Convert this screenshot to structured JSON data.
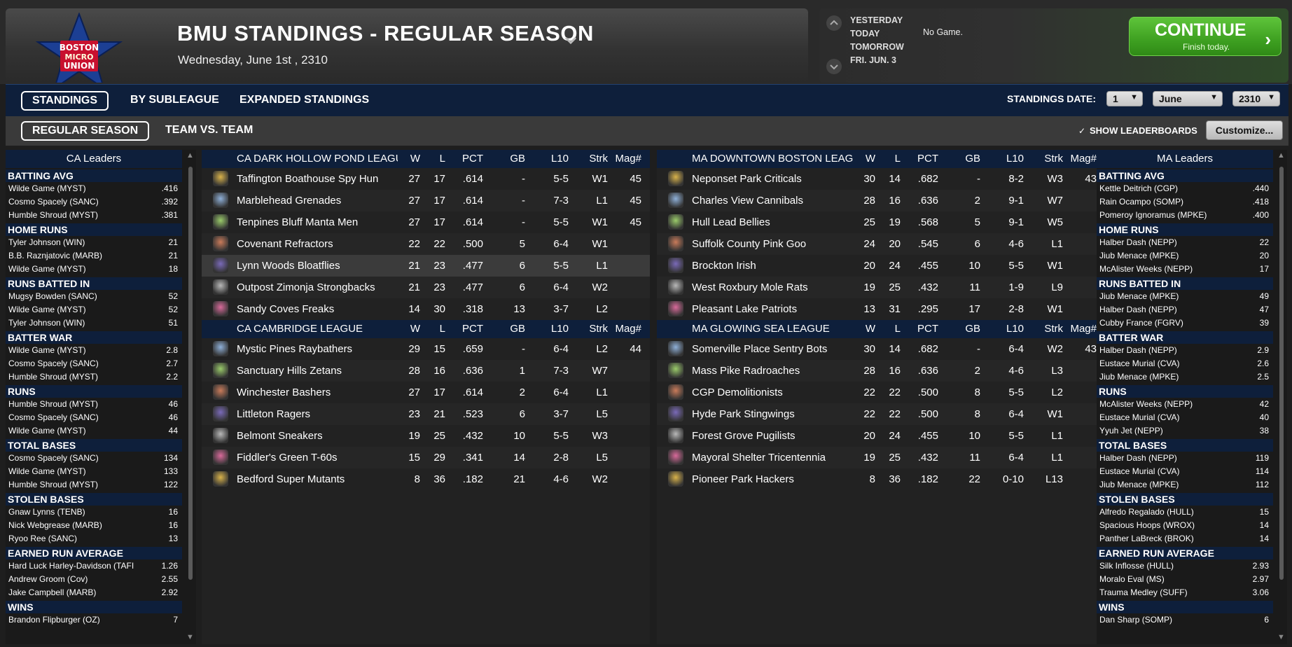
{
  "header": {
    "title": "BMU STANDINGS - REGULAR SEASON",
    "date": "Wednesday, June 1st , 2310",
    "logo_text": [
      "BOSTON",
      "MICRO",
      "UNION"
    ],
    "days": [
      "YESTERDAY",
      "TODAY",
      "TOMORROW",
      "FRI. JUN. 3"
    ],
    "no_game": "No Game.",
    "continue_label": "CONTINUE",
    "continue_sub": "Finish today.",
    "continue_arrow": "›"
  },
  "tabs": {
    "primary": [
      "STANDINGS",
      "BY SUBLEAGUE",
      "EXPANDED STANDINGS"
    ],
    "secondary": [
      "REGULAR SEASON",
      "TEAM VS. TEAM"
    ],
    "standings_date_label": "STANDINGS DATE:",
    "date_day": "1",
    "date_month": "June",
    "date_year": "2310",
    "show_leaderboards": "SHOW LEADERBOARDS",
    "check_mark": "✓",
    "customize": "Customize..."
  },
  "colors": {
    "nav_blue": "#0e1f3b",
    "continue_green": "#3ea021",
    "logo_red": "#c8102e",
    "logo_blue": "#1c3f94"
  },
  "columns": [
    "W",
    "L",
    "PCT",
    "GB",
    "L10",
    "Strk",
    "Mag#"
  ],
  "ca_leaders": {
    "title": "CA Leaders",
    "categories": [
      {
        "name": "BATTING AVG",
        "rows": [
          [
            "Wilde Game (MYST)",
            ".416"
          ],
          [
            "Cosmo Spacely (SANC)",
            ".392"
          ],
          [
            "Humble Shroud (MYST)",
            ".381"
          ]
        ]
      },
      {
        "name": "HOME RUNS",
        "rows": [
          [
            "Tyler Johnson (WIN)",
            "21"
          ],
          [
            "B.B. Raznjatovic (MARB)",
            "21"
          ],
          [
            "Wilde Game (MYST)",
            "18"
          ]
        ]
      },
      {
        "name": "RUNS BATTED IN",
        "rows": [
          [
            "Mugsy Bowden (SANC)",
            "52"
          ],
          [
            "Wilde Game (MYST)",
            "52"
          ],
          [
            "Tyler Johnson (WIN)",
            "51"
          ]
        ]
      },
      {
        "name": "BATTER WAR",
        "rows": [
          [
            "Wilde Game (MYST)",
            "2.8"
          ],
          [
            "Cosmo Spacely (SANC)",
            "2.7"
          ],
          [
            "Humble Shroud (MYST)",
            "2.2"
          ]
        ]
      },
      {
        "name": "RUNS",
        "rows": [
          [
            "Humble Shroud (MYST)",
            "46"
          ],
          [
            "Cosmo Spacely (SANC)",
            "46"
          ],
          [
            "Wilde Game (MYST)",
            "44"
          ]
        ]
      },
      {
        "name": "TOTAL BASES",
        "rows": [
          [
            "Cosmo Spacely (SANC)",
            "134"
          ],
          [
            "Wilde Game (MYST)",
            "133"
          ],
          [
            "Humble Shroud (MYST)",
            "122"
          ]
        ]
      },
      {
        "name": "STOLEN BASES",
        "rows": [
          [
            "Gnaw Lynns (TENB)",
            "16"
          ],
          [
            "Nick Webgrease (MARB)",
            "16"
          ],
          [
            "Ryoo Ree (SANC)",
            "13"
          ]
        ]
      },
      {
        "name": "EARNED RUN AVERAGE",
        "rows": [
          [
            "Hard Luck Harley-Davidson (TAFI",
            "1.26"
          ],
          [
            "Andrew Groom (Cov)",
            "2.55"
          ],
          [
            "Jake Campbell (MARB)",
            "2.92"
          ]
        ]
      },
      {
        "name": "WINS",
        "rows": [
          [
            "Brandon Flipburger (OZ)",
            "7"
          ]
        ]
      }
    ]
  },
  "ma_leaders": {
    "title": "MA Leaders",
    "categories": [
      {
        "name": "BATTING AVG",
        "rows": [
          [
            "Kettle Deitrich (CGP)",
            ".440"
          ],
          [
            "Rain Ocampo (SOMP)",
            ".418"
          ],
          [
            "Pomeroy Ignoramus (MPKE)",
            ".400"
          ]
        ]
      },
      {
        "name": "HOME RUNS",
        "rows": [
          [
            "Halber Dash (NEPP)",
            "22"
          ],
          [
            "Jiub Menace (MPKE)",
            "20"
          ],
          [
            "McAlister Weeks (NEPP)",
            "17"
          ]
        ]
      },
      {
        "name": "RUNS BATTED IN",
        "rows": [
          [
            "Jiub Menace (MPKE)",
            "49"
          ],
          [
            "Halber Dash (NEPP)",
            "47"
          ],
          [
            "Cubby France (FGRV)",
            "39"
          ]
        ]
      },
      {
        "name": "BATTER WAR",
        "rows": [
          [
            "Halber Dash (NEPP)",
            "2.9"
          ],
          [
            "Eustace Murial (CVA)",
            "2.6"
          ],
          [
            "Jiub Menace (MPKE)",
            "2.5"
          ]
        ]
      },
      {
        "name": "RUNS",
        "rows": [
          [
            "McAlister Weeks (NEPP)",
            "42"
          ],
          [
            "Eustace Murial (CVA)",
            "40"
          ],
          [
            "Yyuh Jet (NEPP)",
            "38"
          ]
        ]
      },
      {
        "name": "TOTAL BASES",
        "rows": [
          [
            "Halber Dash (NEPP)",
            "119"
          ],
          [
            "Eustace Murial (CVA)",
            "114"
          ],
          [
            "Jiub Menace (MPKE)",
            "112"
          ]
        ]
      },
      {
        "name": "STOLEN BASES",
        "rows": [
          [
            "Alfredo Regalado (HULL)",
            "15"
          ],
          [
            "Spacious Hoops (WROX)",
            "14"
          ],
          [
            "Panther LaBreck (BROK)",
            "14"
          ]
        ]
      },
      {
        "name": "EARNED RUN AVERAGE",
        "rows": [
          [
            "Silk Inflosse (HULL)",
            "2.93"
          ],
          [
            "Moralo Eval (MS)",
            "2.97"
          ],
          [
            "Trauma Medley (SUFF)",
            "3.06"
          ]
        ]
      },
      {
        "name": "WINS",
        "rows": [
          [
            "Dan Sharp (SOMP)",
            "6"
          ]
        ]
      }
    ]
  },
  "ca_standings": [
    {
      "league": "CA DARK HOLLOW POND LEAGUE",
      "teams": [
        [
          "Taffington Boathouse Spy Hun",
          "27",
          "17",
          ".614",
          "-",
          "5-5",
          "W1",
          "45"
        ],
        [
          "Marblehead Grenades",
          "27",
          "17",
          ".614",
          "-",
          "7-3",
          "L1",
          "45"
        ],
        [
          "Tenpines Bluff Manta Men",
          "27",
          "17",
          ".614",
          "-",
          "5-5",
          "W1",
          "45"
        ],
        [
          "Covenant Refractors",
          "22",
          "22",
          ".500",
          "5",
          "6-4",
          "W1",
          ""
        ],
        [
          "Lynn Woods Bloatflies",
          "21",
          "23",
          ".477",
          "6",
          "5-5",
          "L1",
          ""
        ],
        [
          "Outpost Zimonja Strongbacks",
          "21",
          "23",
          ".477",
          "6",
          "6-4",
          "W2",
          ""
        ],
        [
          "Sandy Coves Freaks",
          "14",
          "30",
          ".318",
          "13",
          "3-7",
          "L2",
          ""
        ]
      ]
    },
    {
      "league": "CA CAMBRIDGE LEAGUE",
      "teams": [
        [
          "Mystic Pines Raybathers",
          "29",
          "15",
          ".659",
          "-",
          "6-4",
          "L2",
          "44"
        ],
        [
          "Sanctuary Hills Zetans",
          "28",
          "16",
          ".636",
          "1",
          "7-3",
          "W7",
          ""
        ],
        [
          "Winchester Bashers",
          "27",
          "17",
          ".614",
          "2",
          "6-4",
          "L1",
          ""
        ],
        [
          "Littleton Ragers",
          "23",
          "21",
          ".523",
          "6",
          "3-7",
          "L5",
          ""
        ],
        [
          "Belmont Sneakers",
          "19",
          "25",
          ".432",
          "10",
          "5-5",
          "W3",
          ""
        ],
        [
          "Fiddler's Green T-60s",
          "15",
          "29",
          ".341",
          "14",
          "2-8",
          "L5",
          ""
        ],
        [
          "Bedford Super Mutants",
          "8",
          "36",
          ".182",
          "21",
          "4-6",
          "W2",
          ""
        ]
      ]
    }
  ],
  "ma_standings": [
    {
      "league": "MA DOWNTOWN BOSTON LEAGUE",
      "teams": [
        [
          "Neponset Park Criticals",
          "30",
          "14",
          ".682",
          "-",
          "8-2",
          "W3",
          "43"
        ],
        [
          "Charles View Cannibals",
          "28",
          "16",
          ".636",
          "2",
          "9-1",
          "W7",
          ""
        ],
        [
          "Hull Lead Bellies",
          "25",
          "19",
          ".568",
          "5",
          "9-1",
          "W5",
          ""
        ],
        [
          "Suffolk County Pink Goo",
          "24",
          "20",
          ".545",
          "6",
          "4-6",
          "L1",
          ""
        ],
        [
          "Brockton Irish",
          "20",
          "24",
          ".455",
          "10",
          "5-5",
          "W1",
          ""
        ],
        [
          "West Roxbury Mole Rats",
          "19",
          "25",
          ".432",
          "11",
          "1-9",
          "L9",
          ""
        ],
        [
          "Pleasant Lake Patriots",
          "13",
          "31",
          ".295",
          "17",
          "2-8",
          "W1",
          ""
        ]
      ]
    },
    {
      "league": "MA GLOWING SEA LEAGUE",
      "teams": [
        [
          "Somerville Place Sentry Bots",
          "30",
          "14",
          ".682",
          "-",
          "6-4",
          "W2",
          "43"
        ],
        [
          "Mass Pike Radroaches",
          "28",
          "16",
          ".636",
          "2",
          "4-6",
          "L3",
          ""
        ],
        [
          "CGP Demolitionists",
          "22",
          "22",
          ".500",
          "8",
          "5-5",
          "L2",
          ""
        ],
        [
          "Hyde Park Stingwings",
          "22",
          "22",
          ".500",
          "8",
          "6-4",
          "W1",
          ""
        ],
        [
          "Forest Grove Pugilists",
          "20",
          "24",
          ".455",
          "10",
          "5-5",
          "L1",
          ""
        ],
        [
          "Mayoral Shelter Tricentennia",
          "19",
          "25",
          ".432",
          "11",
          "6-4",
          "L1",
          ""
        ],
        [
          "Pioneer Park Hackers",
          "8",
          "36",
          ".182",
          "22",
          "0-10",
          "L13",
          ""
        ]
      ]
    }
  ]
}
